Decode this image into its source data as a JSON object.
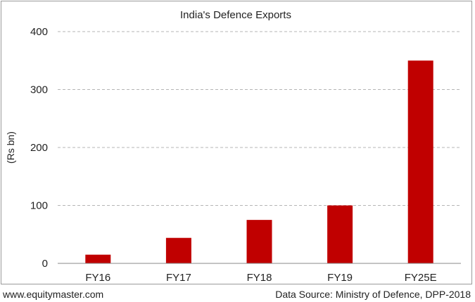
{
  "chart_data": {
    "type": "bar",
    "title": "India's Defence Exports",
    "xlabel": "",
    "ylabel": "(Rs bn)",
    "categories": [
      "FY16",
      "FY17",
      "FY18",
      "FY19",
      "FY25E"
    ],
    "values": [
      15,
      44,
      75,
      100,
      350
    ],
    "ylim": [
      0,
      400
    ],
    "yticks": [
      0,
      100,
      200,
      300,
      400
    ],
    "grid": true,
    "bar_color": "#c00000"
  },
  "footer": {
    "website": "www.equitymaster.com",
    "source": "Data Source: Ministry of Defence, DPP-2018"
  }
}
